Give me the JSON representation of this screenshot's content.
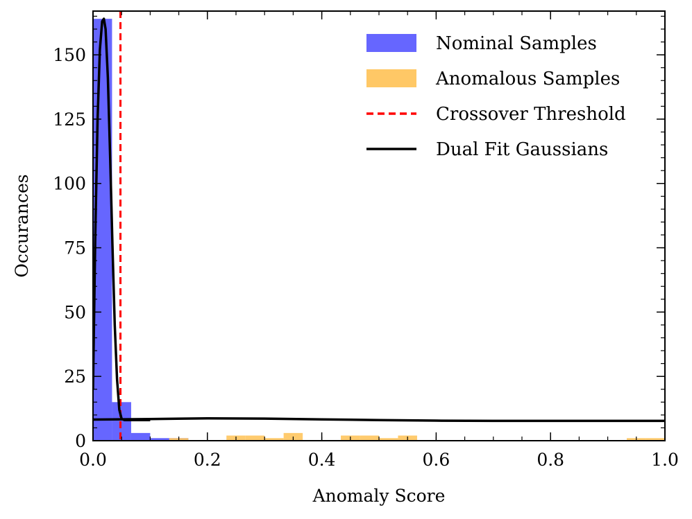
{
  "chart_data": {
    "type": "bar",
    "title": "",
    "xlabel": "Anomaly Score",
    "ylabel": "Occurances",
    "xlim": [
      0.0,
      1.0
    ],
    "ylim": [
      0,
      167
    ],
    "x_ticks": [
      0.0,
      0.2,
      0.4,
      0.6,
      0.8,
      1.0
    ],
    "x_tick_labels": [
      "0.0",
      "0.2",
      "0.4",
      "0.6",
      "0.8",
      "1.0"
    ],
    "y_ticks": [
      0,
      25,
      50,
      75,
      100,
      125,
      150
    ],
    "y_tick_labels": [
      "0",
      "25",
      "50",
      "75",
      "100",
      "125",
      "150"
    ],
    "legend_position": "top-right",
    "colors": {
      "nominal": "#6666ff",
      "anomalous": "#ffc866",
      "threshold": "#ff0000",
      "gaussian": "#000000"
    },
    "series": [
      {
        "name": "Nominal Samples",
        "kind": "histogram",
        "bins": [
          {
            "x0": 0.0,
            "x1": 0.0333,
            "count": 164
          },
          {
            "x0": 0.0333,
            "x1": 0.0667,
            "count": 15
          },
          {
            "x0": 0.0667,
            "x1": 0.1,
            "count": 3
          },
          {
            "x0": 0.1,
            "x1": 0.1333,
            "count": 1
          },
          {
            "x0": 0.1333,
            "x1": 0.1667,
            "count": 1
          }
        ]
      },
      {
        "name": "Anomalous Samples",
        "kind": "histogram",
        "bins": [
          {
            "x0": 0.1333,
            "x1": 0.1667,
            "count": 1
          },
          {
            "x0": 0.2333,
            "x1": 0.2667,
            "count": 2
          },
          {
            "x0": 0.2667,
            "x1": 0.3,
            "count": 2
          },
          {
            "x0": 0.3,
            "x1": 0.3333,
            "count": 1
          },
          {
            "x0": 0.3333,
            "x1": 0.3667,
            "count": 3
          },
          {
            "x0": 0.4333,
            "x1": 0.4667,
            "count": 2
          },
          {
            "x0": 0.4667,
            "x1": 0.5,
            "count": 2
          },
          {
            "x0": 0.5,
            "x1": 0.5333,
            "count": 1
          },
          {
            "x0": 0.5333,
            "x1": 0.5667,
            "count": 2
          },
          {
            "x0": 0.9333,
            "x1": 0.9667,
            "count": 1
          },
          {
            "x0": 0.9667,
            "x1": 1.0,
            "count": 1
          }
        ]
      },
      {
        "name": "Crossover Threshold",
        "kind": "vline",
        "x": 0.048
      },
      {
        "name": "Dual Fit Gaussians",
        "kind": "line",
        "segments": [
          {
            "x": [
              0.0,
              0.004,
              0.008,
              0.012,
              0.016,
              0.019,
              0.022,
              0.026,
              0.03,
              0.034,
              0.038,
              0.042,
              0.046,
              0.05,
              0.055,
              0.06,
              0.07,
              0.08,
              0.09,
              0.1
            ],
            "y": [
              20,
              80,
              125,
              152,
              163,
              164,
              160,
              141,
              110,
              76,
              45,
              24,
              12,
              8.5,
              8,
              8,
              8,
              8,
              8,
              8
            ]
          },
          {
            "x": [
              0.0,
              0.1,
              0.2,
              0.3,
              0.4,
              0.5,
              0.6,
              0.7,
              0.8,
              0.9,
              1.0
            ],
            "y": [
              8.2,
              8.4,
              8.7,
              8.6,
              8.3,
              8.0,
              7.8,
              7.7,
              7.7,
              7.7,
              7.7
            ]
          }
        ]
      }
    ]
  }
}
